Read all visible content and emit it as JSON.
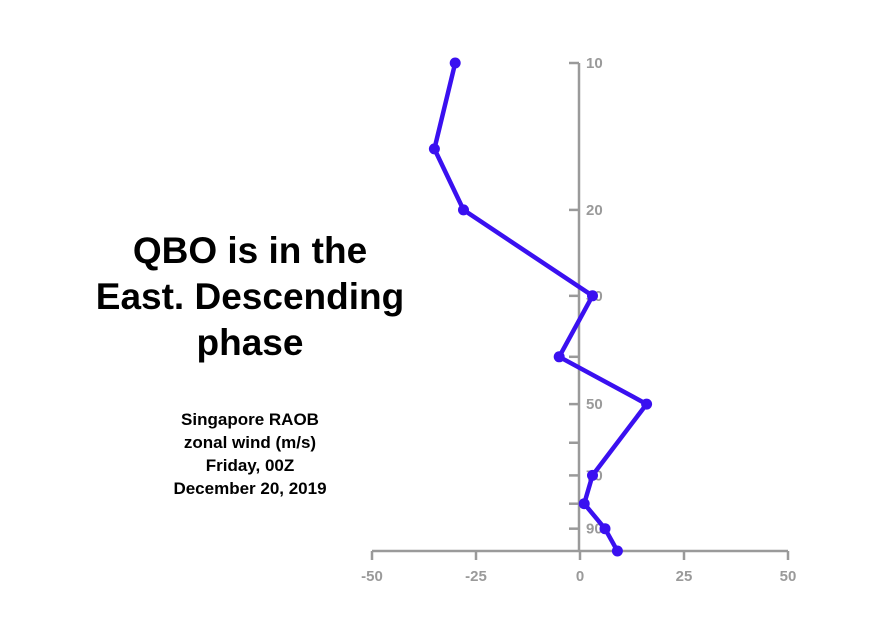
{
  "headline": {
    "lines": [
      "QBO is in the",
      "East. Descending",
      "phase"
    ]
  },
  "caption": {
    "lines": [
      "Singapore RAOB",
      "zonal wind (m/s)",
      "Friday, 00Z",
      "December 20, 2019"
    ]
  },
  "colors": {
    "series": "#3a10f0",
    "axis": "#9a9a9a"
  },
  "chart_data": {
    "type": "line",
    "xlim": [
      -50,
      50
    ],
    "x_ticks": [
      -50,
      -25,
      0,
      25,
      50
    ],
    "x_tick_labels": [
      "-50",
      "-25",
      "0",
      "25",
      "50"
    ],
    "y_scale": "log",
    "y_inverted": true,
    "ylim": [
      10,
      100
    ],
    "y_ticks": [
      10,
      20,
      30,
      40,
      50,
      60,
      70,
      80,
      90
    ],
    "y_tick_labels": [
      "10",
      "20",
      "30",
      "",
      "50",
      "",
      "70",
      "",
      "90"
    ],
    "series": [
      {
        "points": [
          {
            "x": -30,
            "y": 10
          },
          {
            "x": -35,
            "y": 15
          },
          {
            "x": -28,
            "y": 20
          },
          {
            "x": 3,
            "y": 30
          },
          {
            "x": -5,
            "y": 40
          },
          {
            "x": 16,
            "y": 50
          },
          {
            "x": 3,
            "y": 70
          },
          {
            "x": 1,
            "y": 80
          },
          {
            "x": 6,
            "y": 90
          },
          {
            "x": 9,
            "y": 100
          }
        ]
      }
    ]
  }
}
